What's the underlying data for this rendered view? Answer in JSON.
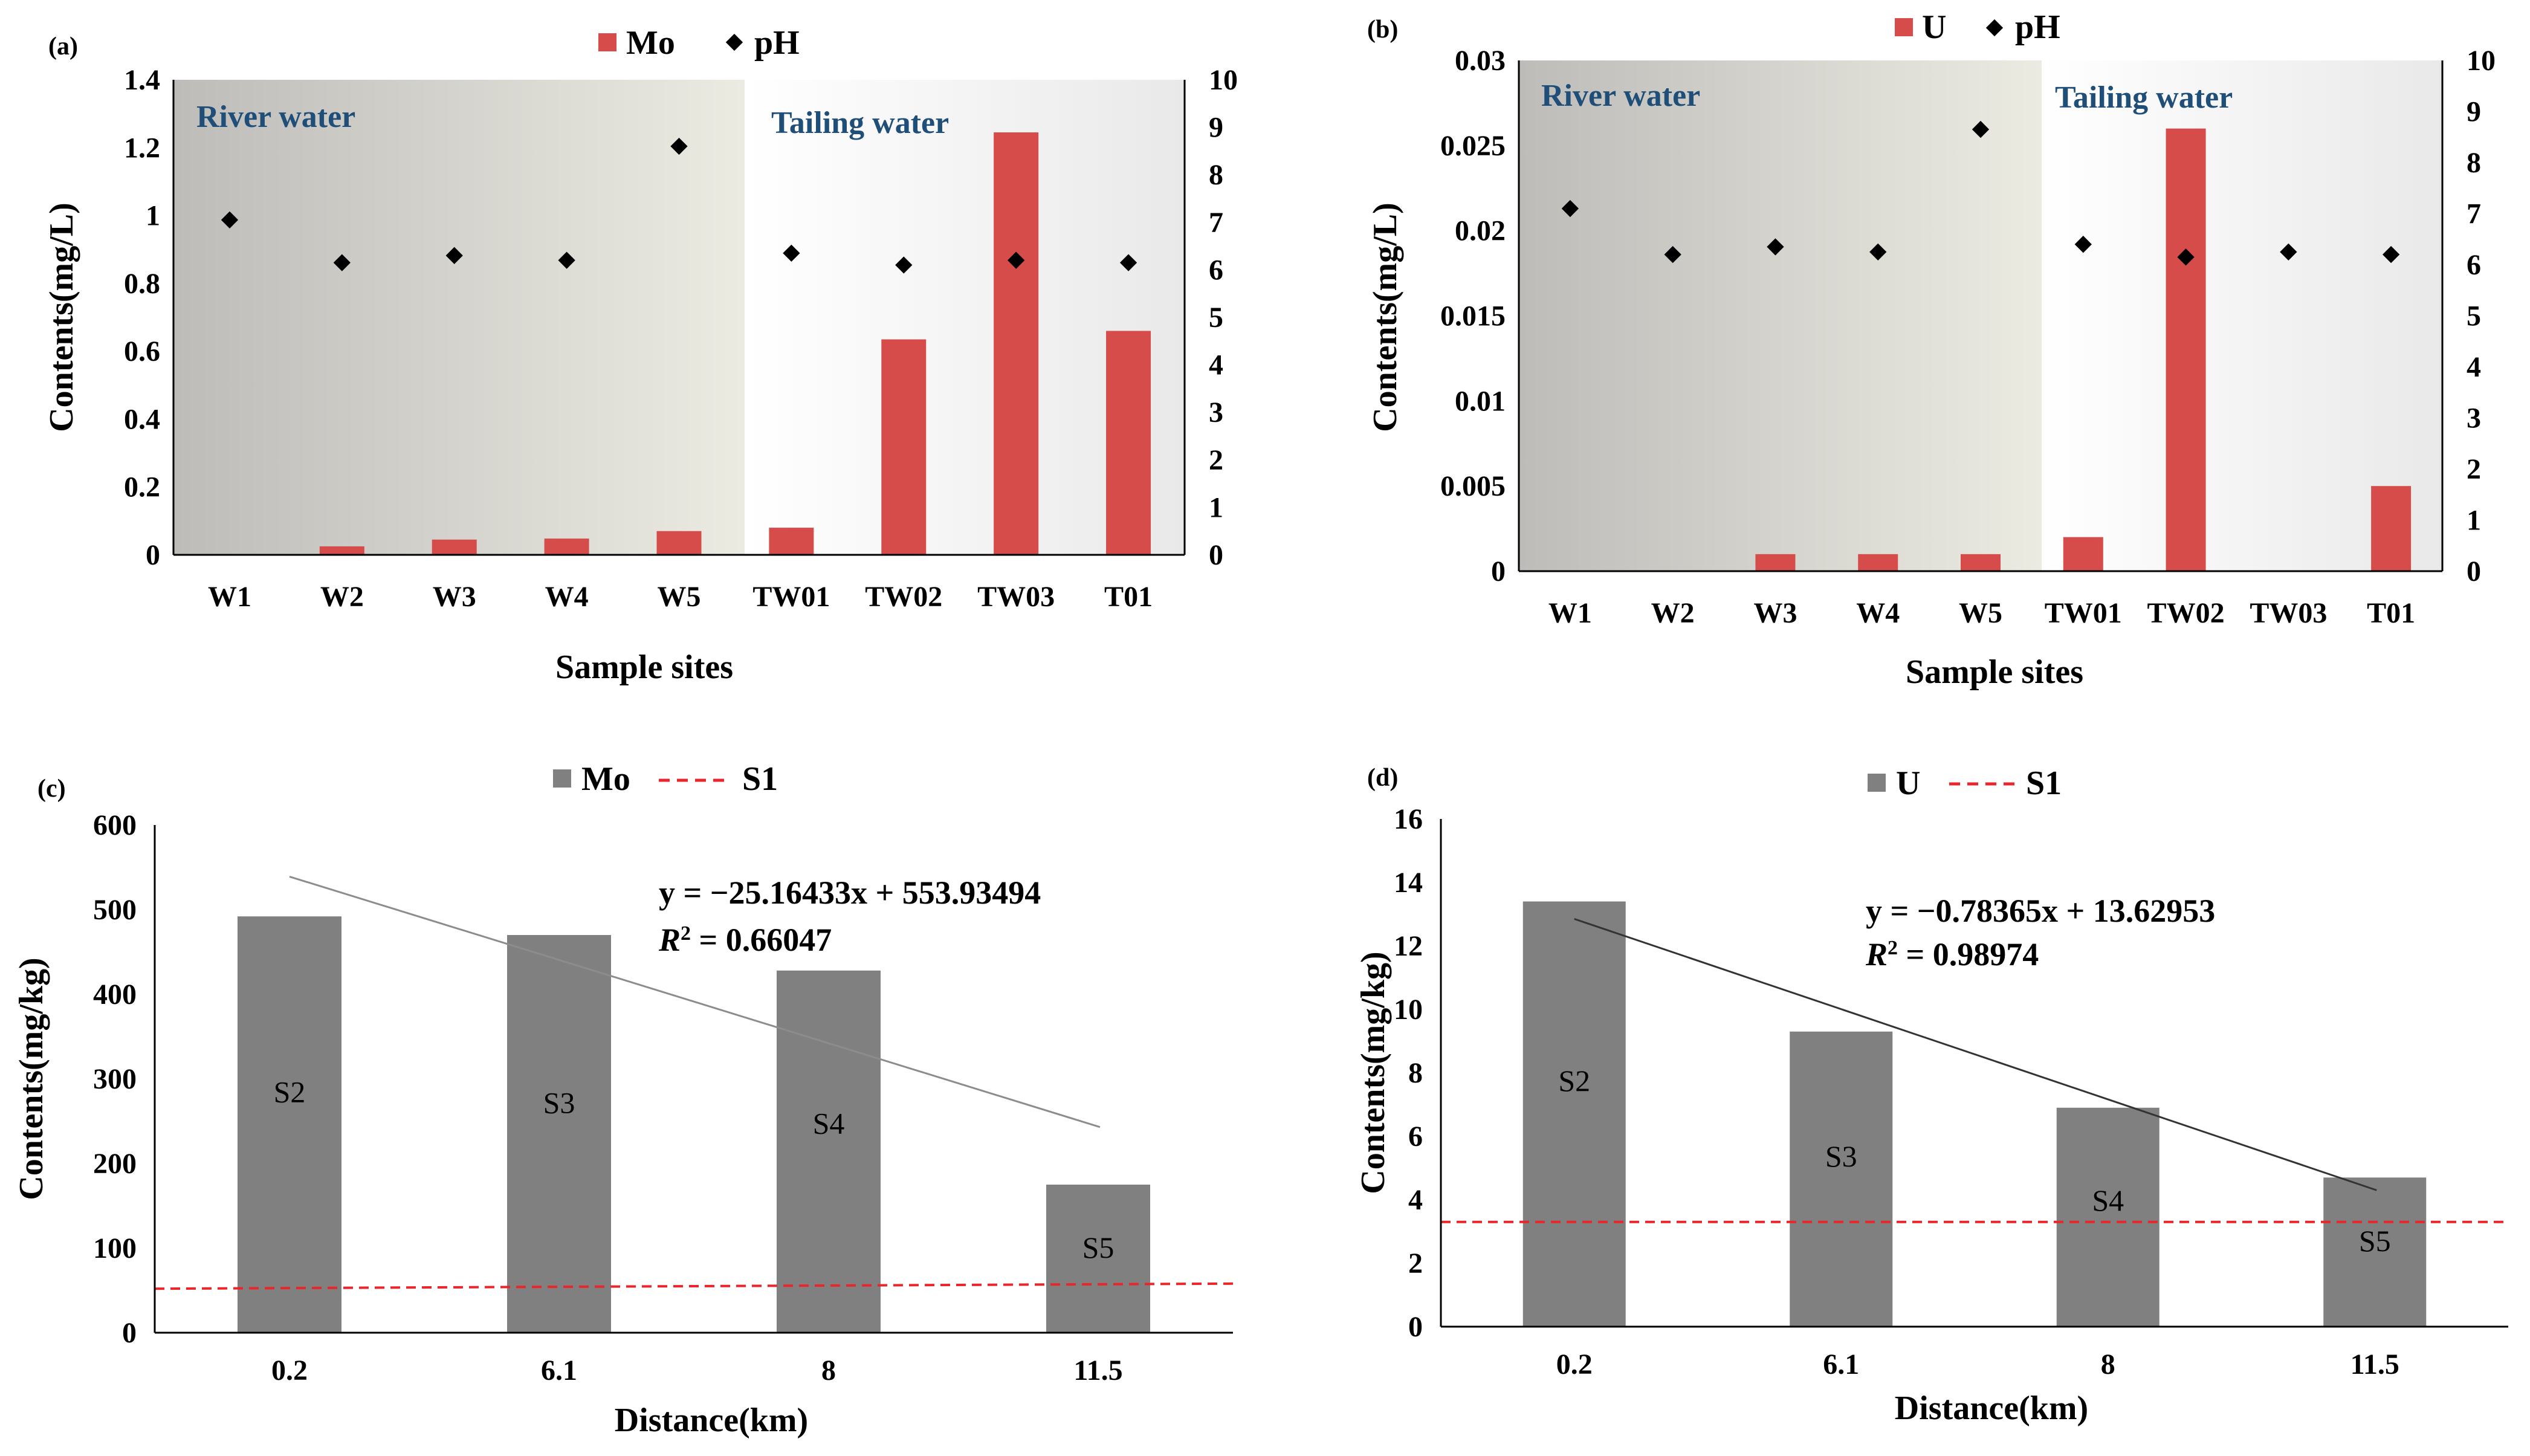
{
  "colors": {
    "mo_bar": "#d64c4b",
    "u_bar": "#d64c4b",
    "gray_bar": "#808080",
    "ph_marker": "#000000",
    "s1_line": "#e8262b",
    "trend_line": "#7f7f7f",
    "region_text": "#1f4e79"
  },
  "panels": {
    "a": {
      "label": "(a)",
      "river_label": "River water",
      "tailing_label": "Tailing water"
    },
    "b": {
      "label": "(b)",
      "river_label": "River water",
      "tailing_label": "Tailing water"
    },
    "c": {
      "label": "(c)",
      "equation": "y = −25.16433x + 553.93494",
      "r2_label": "R",
      "r2_sup": "2",
      "r2_value": " = 0.66047"
    },
    "d": {
      "label": "(d)",
      "equation": "y = −0.78365x + 13.62953",
      "r2_label": "R",
      "r2_sup": "2",
      "r2_value": " = 0.98974"
    }
  },
  "chart_data": [
    {
      "id": "a",
      "type": "bar",
      "categories": [
        "W1",
        "W2",
        "W3",
        "W4",
        "W5",
        "TW01",
        "TW02",
        "TW03",
        "T01"
      ],
      "series": [
        {
          "name": "Mo",
          "kind": "bar",
          "axis": "left",
          "values": [
            0,
            0.025,
            0.045,
            0.048,
            0.07,
            0.08,
            0.635,
            1.245,
            0.66
          ]
        },
        {
          "name": "pH",
          "kind": "scatter",
          "axis": "right",
          "values": [
            7.05,
            6.15,
            6.3,
            6.2,
            8.6,
            6.35,
            6.1,
            6.2,
            6.15
          ]
        }
      ],
      "xlabel": "Sample sites",
      "ylabel": "Contents(mg/L)",
      "ylim": [
        0,
        1.4
      ],
      "yticks": [
        "0",
        "0.2",
        "0.4",
        "0.6",
        "0.8",
        "1",
        "1.2",
        "1.4"
      ],
      "y2lim": [
        0,
        10
      ],
      "y2ticks": [
        "0",
        "1",
        "2",
        "3",
        "4",
        "5",
        "6",
        "7",
        "8",
        "9",
        "10"
      ],
      "river_categories": 5
    },
    {
      "id": "b",
      "type": "bar",
      "categories": [
        "W1",
        "W2",
        "W3",
        "W4",
        "W5",
        "TW01",
        "TW02",
        "TW03",
        "T01"
      ],
      "series": [
        {
          "name": "U",
          "kind": "bar",
          "axis": "left",
          "values": [
            0,
            0,
            0.001,
            0.001,
            0.001,
            0.002,
            0.026,
            0,
            0.005
          ]
        },
        {
          "name": "pH",
          "kind": "scatter",
          "axis": "right",
          "values": [
            7.1,
            6.2,
            6.35,
            6.25,
            8.65,
            6.4,
            6.15,
            6.25,
            6.2
          ]
        }
      ],
      "xlabel": "Sample sites",
      "ylabel": "Contents(mg/L)",
      "ylim": [
        0,
        0.03
      ],
      "yticks": [
        "0",
        "0.005",
        "0.01",
        "0.015",
        "0.02",
        "0.025",
        "0.03"
      ],
      "y2lim": [
        0,
        10
      ],
      "y2ticks": [
        "0",
        "1",
        "2",
        "3",
        "4",
        "5",
        "6",
        "7",
        "8",
        "9",
        "10"
      ],
      "river_categories": 5
    },
    {
      "id": "c",
      "type": "bar",
      "categories": [
        "0.2",
        "6.1",
        "8",
        "11.5"
      ],
      "bar_labels": [
        "S2",
        "S3",
        "S4",
        "S5"
      ],
      "series": [
        {
          "name": "Mo",
          "kind": "bar",
          "values": [
            492,
            470,
            428,
            175
          ]
        },
        {
          "name": "S1",
          "kind": "dashed-line",
          "start": 52,
          "end": 58
        }
      ],
      "trend": {
        "start": 539,
        "end": 243
      },
      "xlabel": "Distance(km)",
      "ylabel": "Contents(mg/kg)",
      "ylim": [
        0,
        600
      ],
      "yticks": [
        "0",
        "100",
        "200",
        "300",
        "400",
        "500",
        "600"
      ]
    },
    {
      "id": "d",
      "type": "bar",
      "categories": [
        "0.2",
        "6.1",
        "8",
        "11.5"
      ],
      "bar_labels": [
        "S2",
        "S3",
        "S4",
        "S5"
      ],
      "series": [
        {
          "name": "U",
          "kind": "bar",
          "values": [
            13.4,
            9.3,
            6.9,
            4.7
          ]
        },
        {
          "name": "S1",
          "kind": "dashed-line",
          "start": 3.3,
          "end": 3.3
        }
      ],
      "trend": {
        "start": 12.85,
        "end": 4.3
      },
      "xlabel": "Distance(km)",
      "ylabel": "Contents(mg/kg)",
      "ylim": [
        0,
        16
      ],
      "yticks": [
        "0",
        "2",
        "4",
        "6",
        "8",
        "10",
        "12",
        "14",
        "16"
      ]
    }
  ]
}
